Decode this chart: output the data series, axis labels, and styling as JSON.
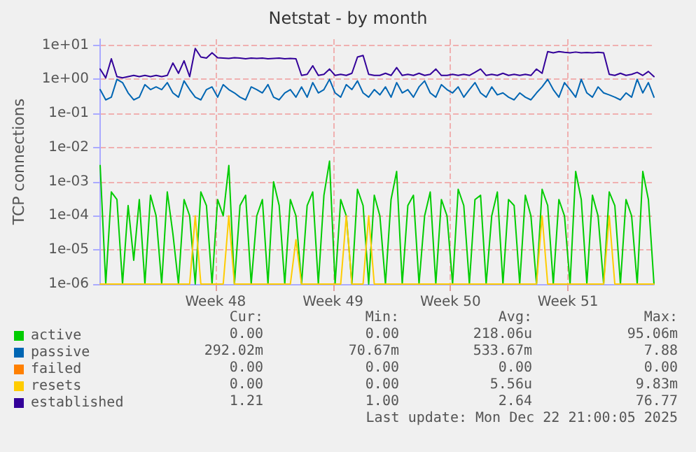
{
  "chart_data": {
    "type": "line",
    "title": "Netstat - by month",
    "ylabel": "TCP connections",
    "x": [
      "2025-11-19T21:00",
      "2025-11-20T05:00",
      "2025-11-20T13:00",
      "2025-11-20T21:00",
      "2025-11-21T05:00",
      "2025-11-21T13:00",
      "2025-11-21T21:00",
      "2025-11-22T05:00",
      "2025-11-22T13:00",
      "2025-11-22T21:00",
      "2025-11-23T05:00",
      "2025-11-23T13:00",
      "2025-11-23T21:00",
      "2025-11-24T05:00",
      "2025-11-24T13:00",
      "2025-11-24T21:00",
      "2025-11-25T05:00",
      "2025-11-25T13:00",
      "2025-11-25T21:00",
      "2025-11-26T05:00",
      "2025-11-26T13:00",
      "2025-11-26T21:00",
      "2025-11-27T05:00",
      "2025-11-27T13:00",
      "2025-11-27T21:00",
      "2025-11-28T05:00",
      "2025-11-28T13:00",
      "2025-11-28T21:00",
      "2025-11-29T05:00",
      "2025-11-29T13:00",
      "2025-11-29T21:00",
      "2025-11-30T05:00",
      "2025-11-30T13:00",
      "2025-11-30T21:00",
      "2025-12-01T05:00",
      "2025-12-01T13:00",
      "2025-12-01T21:00",
      "2025-12-02T05:00",
      "2025-12-02T13:00",
      "2025-12-02T21:00",
      "2025-12-03T05:00",
      "2025-12-03T13:00",
      "2025-12-03T21:00",
      "2025-12-04T05:00",
      "2025-12-04T13:00",
      "2025-12-04T21:00",
      "2025-12-05T05:00",
      "2025-12-05T13:00",
      "2025-12-05T21:00",
      "2025-12-06T05:00",
      "2025-12-06T13:00",
      "2025-12-06T21:00",
      "2025-12-07T05:00",
      "2025-12-07T13:00",
      "2025-12-07T21:00",
      "2025-12-08T05:00",
      "2025-12-08T13:00",
      "2025-12-08T21:00",
      "2025-12-09T05:00",
      "2025-12-09T13:00",
      "2025-12-09T21:00",
      "2025-12-10T05:00",
      "2025-12-10T13:00",
      "2025-12-10T21:00",
      "2025-12-11T05:00",
      "2025-12-11T13:00",
      "2025-12-11T21:00",
      "2025-12-12T05:00",
      "2025-12-12T13:00",
      "2025-12-12T21:00",
      "2025-12-13T05:00",
      "2025-12-13T13:00",
      "2025-12-13T21:00",
      "2025-12-14T05:00",
      "2025-12-14T13:00",
      "2025-12-14T21:00",
      "2025-12-15T05:00",
      "2025-12-15T13:00",
      "2025-12-15T21:00",
      "2025-12-16T05:00",
      "2025-12-16T13:00",
      "2025-12-16T21:00",
      "2025-12-17T05:00",
      "2025-12-17T13:00",
      "2025-12-17T21:00",
      "2025-12-18T05:00",
      "2025-12-18T13:00",
      "2025-12-18T21:00",
      "2025-12-19T05:00",
      "2025-12-19T13:00",
      "2025-12-19T21:00",
      "2025-12-20T05:00",
      "2025-12-20T13:00",
      "2025-12-20T21:00",
      "2025-12-21T05:00",
      "2025-12-21T13:00",
      "2025-12-21T21:00",
      "2025-12-22T05:00",
      "2025-12-22T13:00",
      "2025-12-22T21:00"
    ],
    "series": [
      {
        "name": "active",
        "color": "#00cc00",
        "values": [
          0.003,
          1e-06,
          0.0005,
          0.0003,
          1e-06,
          0.0002,
          5e-06,
          0.0003,
          1e-06,
          0.0004,
          0.0001,
          1e-06,
          0.0005,
          3e-05,
          1e-06,
          0.0003,
          0.0001,
          1e-06,
          0.0005,
          0.0002,
          1e-06,
          0.0003,
          0.0001,
          0.003,
          1e-06,
          0.0002,
          0.0004,
          1e-06,
          0.0001,
          0.0003,
          1e-06,
          0.001,
          0.0002,
          1e-06,
          0.0003,
          0.0001,
          1e-06,
          0.0002,
          0.0005,
          1e-06,
          0.0004,
          0.004,
          1e-06,
          0.0003,
          0.0001,
          1e-06,
          0.0006,
          0.0002,
          1e-06,
          0.0004,
          0.0001,
          1e-06,
          0.0003,
          0.002,
          1e-06,
          0.0002,
          0.0004,
          1e-06,
          0.0001,
          0.0005,
          1e-06,
          0.0003,
          0.0001,
          1e-06,
          0.0006,
          0.0002,
          1e-06,
          0.0003,
          0.0004,
          1e-06,
          0.0001,
          0.0005,
          1e-06,
          0.0003,
          0.0002,
          1e-06,
          0.0004,
          0.0001,
          1e-06,
          0.0006,
          0.0002,
          1e-06,
          0.0003,
          0.0001,
          1e-06,
          0.002,
          0.0003,
          1e-06,
          0.0004,
          0.0001,
          1e-06,
          0.0005,
          0.0002,
          1e-06,
          0.0003,
          0.0001,
          1e-06,
          0.002,
          0.0003,
          1e-06
        ]
      },
      {
        "name": "passive",
        "color": "#0066b3",
        "values": [
          0.5,
          0.25,
          0.3,
          1.0,
          0.8,
          0.4,
          0.25,
          0.3,
          0.7,
          0.5,
          0.6,
          0.5,
          0.8,
          0.4,
          0.3,
          0.9,
          0.5,
          0.3,
          0.25,
          0.5,
          0.6,
          0.3,
          0.7,
          0.5,
          0.4,
          0.3,
          0.25,
          0.6,
          0.5,
          0.4,
          0.7,
          0.3,
          0.25,
          0.4,
          0.5,
          0.3,
          0.6,
          0.3,
          0.8,
          0.4,
          0.5,
          1.0,
          0.4,
          0.3,
          0.7,
          0.5,
          0.9,
          0.4,
          0.3,
          0.5,
          0.35,
          0.6,
          0.3,
          0.8,
          0.4,
          0.5,
          0.3,
          0.6,
          0.9,
          0.4,
          0.3,
          0.7,
          0.5,
          0.4,
          0.6,
          0.3,
          0.5,
          0.8,
          0.4,
          0.3,
          0.6,
          0.35,
          0.4,
          0.3,
          0.25,
          0.4,
          0.3,
          0.25,
          0.4,
          0.6,
          1.0,
          0.5,
          0.3,
          0.8,
          0.5,
          0.3,
          1.0,
          0.4,
          0.3,
          0.6,
          0.4,
          0.35,
          0.3,
          0.25,
          0.4,
          0.3,
          1.0,
          0.4,
          0.8,
          0.3
        ]
      },
      {
        "name": "failed",
        "color": "#ff8000",
        "values": [
          null,
          null,
          null,
          null,
          null,
          null,
          null,
          null,
          null,
          null,
          null,
          null,
          null,
          null,
          null,
          null,
          null,
          null,
          null,
          null,
          null,
          null,
          null,
          null,
          null,
          null,
          null,
          null,
          null,
          null,
          null,
          null,
          null,
          null,
          null,
          null,
          null,
          null,
          null,
          null,
          null,
          null,
          null,
          null,
          null,
          null,
          null,
          null,
          null,
          null,
          null,
          null,
          null,
          null,
          null,
          null,
          null,
          null,
          null,
          null,
          null,
          null,
          null,
          null,
          null,
          null,
          null,
          null,
          null,
          null,
          null,
          null,
          null,
          null,
          null,
          null,
          null,
          null,
          null,
          null,
          null,
          null,
          null,
          null,
          null,
          null,
          null,
          null,
          null,
          null,
          null,
          null,
          null,
          null,
          null,
          null,
          null,
          null,
          null,
          null
        ]
      },
      {
        "name": "resets",
        "color": "#ffcc00",
        "values": [
          1e-06,
          1e-06,
          1e-06,
          1e-06,
          1e-06,
          1e-06,
          1e-06,
          1e-06,
          1e-06,
          1e-06,
          1e-06,
          1e-06,
          1e-06,
          1e-06,
          1e-06,
          1e-06,
          1e-06,
          0.0001,
          1e-06,
          1e-06,
          1e-06,
          1e-06,
          1e-06,
          0.0001,
          1e-06,
          1e-06,
          1e-06,
          1e-06,
          1e-06,
          1e-06,
          1e-06,
          1e-06,
          1e-06,
          1e-06,
          1e-06,
          2e-05,
          1e-06,
          1e-06,
          1e-06,
          1e-06,
          1e-06,
          1e-06,
          1e-06,
          1e-06,
          0.0001,
          1e-06,
          1e-06,
          1e-06,
          0.0001,
          1e-06,
          1e-06,
          1e-06,
          1e-06,
          1e-06,
          1e-06,
          1e-06,
          1e-06,
          1e-06,
          1e-06,
          1e-06,
          1e-06,
          1e-06,
          1e-06,
          1e-06,
          1e-06,
          1e-06,
          1e-06,
          1e-06,
          1e-06,
          1e-06,
          1e-06,
          1e-06,
          1e-06,
          1e-06,
          1e-06,
          1e-06,
          1e-06,
          1e-06,
          1e-06,
          0.0001,
          1e-06,
          1e-06,
          1e-06,
          1e-06,
          1e-06,
          1e-06,
          1e-06,
          1e-06,
          1e-06,
          1e-06,
          1e-06,
          0.0001,
          1e-06,
          1e-06,
          1e-06,
          1e-06,
          1e-06,
          1e-06,
          1e-06,
          1e-06
        ]
      },
      {
        "name": "established",
        "color": "#330099",
        "values": [
          2.0,
          1.1,
          4.0,
          1.2,
          1.1,
          1.2,
          1.3,
          1.2,
          1.3,
          1.2,
          1.3,
          1.2,
          1.3,
          3.0,
          1.5,
          3.5,
          1.2,
          8.0,
          4.5,
          4.2,
          6.0,
          4.3,
          4.2,
          4.1,
          4.3,
          4.2,
          4.0,
          4.2,
          4.1,
          4.2,
          4.0,
          4.1,
          4.2,
          4.0,
          4.1,
          4.0,
          1.3,
          1.4,
          2.5,
          1.3,
          1.4,
          2.0,
          1.3,
          1.4,
          1.3,
          1.5,
          4.5,
          5.0,
          1.4,
          1.3,
          1.3,
          1.5,
          1.3,
          2.2,
          1.3,
          1.4,
          1.3,
          1.5,
          1.3,
          1.4,
          2.0,
          1.3,
          1.3,
          1.4,
          1.3,
          1.4,
          1.3,
          1.6,
          2.0,
          1.3,
          1.4,
          1.3,
          1.5,
          1.3,
          1.4,
          1.3,
          1.4,
          1.3,
          2.0,
          1.5,
          6.5,
          6.0,
          6.5,
          6.2,
          6.0,
          6.3,
          6.0,
          6.1,
          6.0,
          6.2,
          6.0,
          1.4,
          1.3,
          1.5,
          1.3,
          1.4,
          1.6,
          1.3,
          1.7,
          1.2
        ]
      }
    ],
    "log": "y",
    "xlim": [
      "2025-11-19T21:00",
      "2025-12-22T21:00"
    ],
    "xticks": [
      {
        "value": "2025-11-26T18:00",
        "label": "Week 48"
      },
      {
        "value": "2025-12-03T18:00",
        "label": "Week 49"
      },
      {
        "value": "2025-12-10T18:00",
        "label": "Week 50"
      },
      {
        "value": "2025-12-17T18:00",
        "label": "Week 51"
      }
    ],
    "ylim": [
      1e-06,
      15
    ],
    "yticks": [
      {
        "value": 1e-06,
        "label": "1e-06"
      },
      {
        "value": 1e-05,
        "label": "1e-05"
      },
      {
        "value": 0.0001,
        "label": "1e-04"
      },
      {
        "value": 0.001,
        "label": "1e-03"
      },
      {
        "value": 0.01,
        "label": "1e-02"
      },
      {
        "value": 0.1,
        "label": "1e-01"
      },
      {
        "value": 1,
        "label": "1e+00"
      },
      {
        "value": 10,
        "label": "1e+01"
      }
    ],
    "grid": true,
    "legend": "bottom left",
    "marker": "none",
    "line_style": "solid",
    "annotations": [
      "Cur:",
      "Min:",
      "Avg:",
      "Max:",
      "0.00",
      "0.00",
      "218.06u",
      "95.06m",
      "292.02m",
      "70.67m",
      "533.67m",
      "7.88",
      "0.00",
      "0.00",
      "0.00",
      "0.00",
      "0.00",
      "0.00",
      "5.56u",
      "9.83m",
      "1.21",
      "1.00",
      "2.64",
      "76.77",
      "Last update: Mon Dec 22 21:00:05 2025"
    ]
  }
}
